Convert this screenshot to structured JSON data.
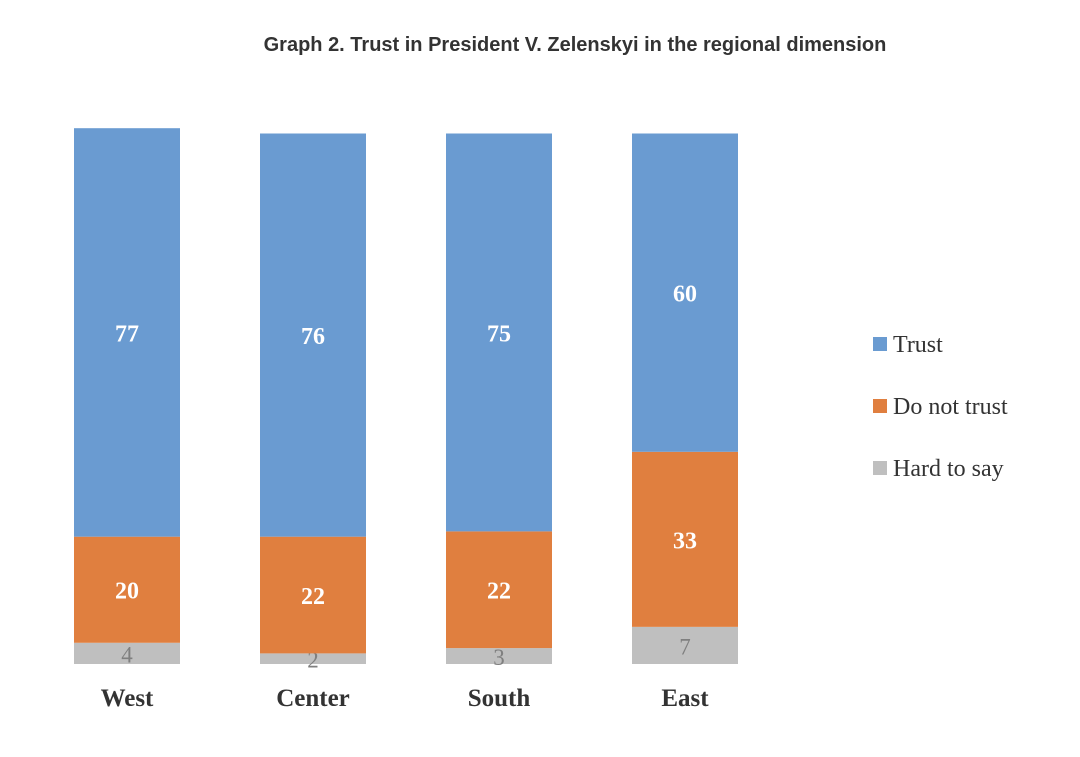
{
  "chart_data": {
    "type": "bar",
    "stacked": true,
    "title": "Graph 2. Trust in President V. Zelenskyi in the regional dimension",
    "categories": [
      "West",
      "Center",
      "South",
      "East"
    ],
    "series": [
      {
        "name": "Hard to say",
        "values": [
          4,
          2,
          3,
          7
        ],
        "color": "#bfbfbf"
      },
      {
        "name": "Do not trust",
        "values": [
          20,
          22,
          22,
          33
        ],
        "color": "#e07f3f"
      },
      {
        "name": "Trust",
        "values": [
          77,
          76,
          75,
          60
        ],
        "color": "#6a9bd1"
      }
    ],
    "legend_order": [
      "Trust",
      "Do not trust",
      "Hard to say"
    ],
    "legend_position": "right",
    "grid": false
  }
}
